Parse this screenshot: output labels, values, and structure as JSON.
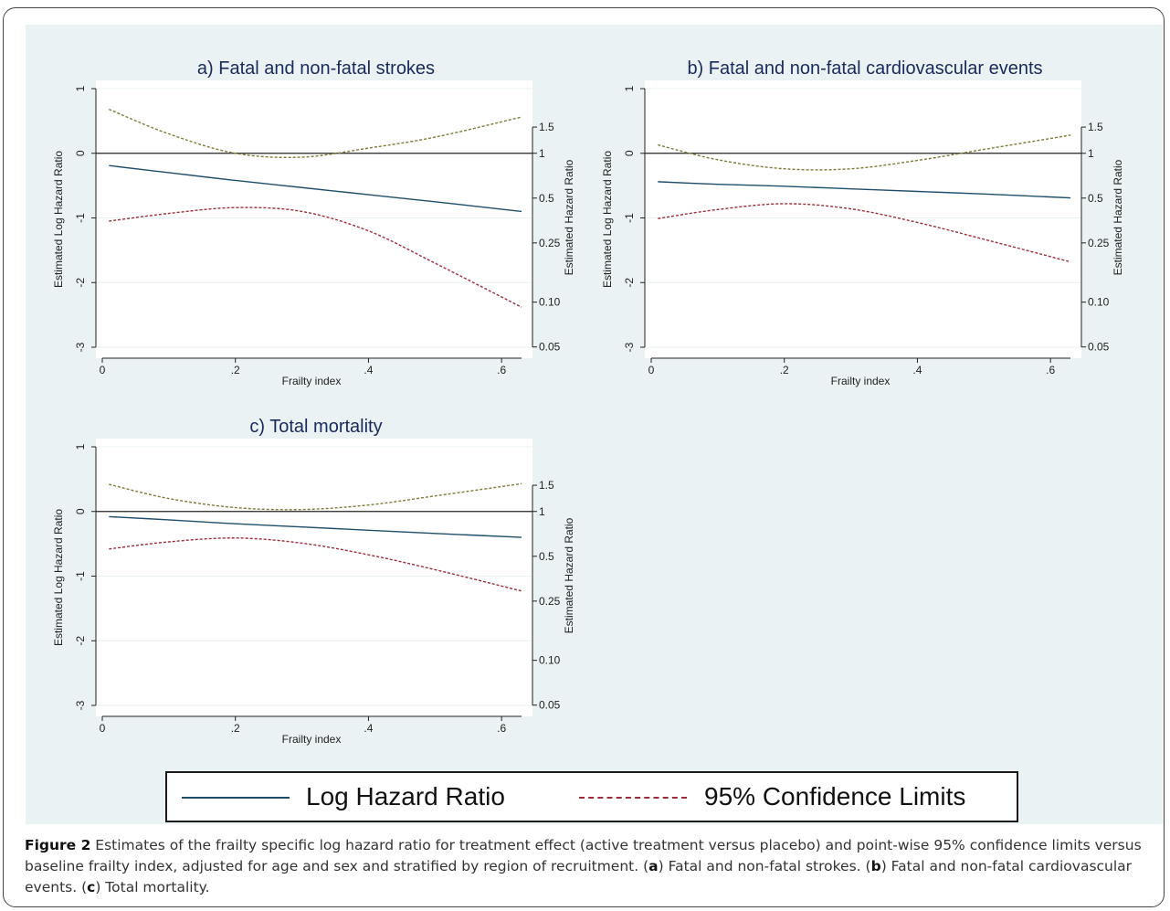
{
  "legend": {
    "log_hr_label": "Log Hazard Ratio",
    "ci_label": "95% Confidence Limits"
  },
  "colors": {
    "log_hr": "#1f4e6b",
    "lower_ci": "#9e2b3a",
    "upper_ci": "#7d7a3a",
    "reference_line": "#222222",
    "plot_background": "#eaf2f3"
  },
  "caption": {
    "figure_label": "Figure 2",
    "text_1": " Estimates of the frailty specific log hazard ratio for treatment effect (active treatment versus placebo) and point-wise 95% confidence limits versus baseline frailty index, adjusted for age and sex and stratified by region of recruitment. (",
    "a": "a",
    "text_2": ") Fatal and non-fatal strokes. (",
    "b": "b",
    "text_3": ") Fatal and non-fatal cardiovascular events. (",
    "c": "c",
    "text_4": ") Total mortality."
  },
  "chart_data": [
    {
      "type": "line",
      "title": "a) Fatal and non-fatal strokes",
      "xlabel": "Frailty index",
      "ylabel_left": "Estimated Log Hazard Ratio",
      "ylabel_right": "Estimated Hazard Ratio",
      "x_ticks": [
        "0",
        ".2",
        ".4",
        ".6"
      ],
      "x_tick_values": [
        0,
        0.2,
        0.4,
        0.6
      ],
      "y_ticks_left": [
        "-3",
        "-2",
        "-1",
        "0",
        "1"
      ],
      "y_ticks_right": [
        "0.05",
        "0.10",
        "0.25",
        "0.5",
        "1",
        "1.5"
      ],
      "y_tick_values_right": [
        0.05,
        0.1,
        0.25,
        0.5,
        1,
        1.5
      ],
      "xlim": [
        0,
        0.63
      ],
      "ylim": [
        -3,
        1
      ],
      "reference_y": 0,
      "x": [
        0.01,
        0.1,
        0.2,
        0.3,
        0.4,
        0.5,
        0.63
      ],
      "series": [
        {
          "name": "Log Hazard Ratio",
          "role": "log_hr",
          "values": [
            -0.19,
            -0.3,
            -0.42,
            -0.53,
            -0.64,
            -0.75,
            -0.9
          ]
        },
        {
          "name": "95% Confidence Limits",
          "role": "lower_ci",
          "values": [
            -1.05,
            -0.93,
            -0.84,
            -0.9,
            -1.2,
            -1.7,
            -2.38
          ]
        },
        {
          "name": "95% Confidence Limits",
          "role": "upper_ci",
          "values": [
            0.68,
            0.3,
            0.0,
            -0.06,
            0.08,
            0.25,
            0.56
          ]
        }
      ]
    },
    {
      "type": "line",
      "title": "b) Fatal and non-fatal cardiovascular events",
      "xlabel": "Frailty index",
      "ylabel_left": "Estimated Log Hazard Ratio",
      "ylabel_right": "Estimated Hazard Ratio",
      "x_ticks": [
        "0",
        ".2",
        ".4",
        ".6"
      ],
      "x_tick_values": [
        0,
        0.2,
        0.4,
        0.6
      ],
      "y_ticks_left": [
        "-3",
        "-2",
        "-1",
        "0",
        "1"
      ],
      "y_ticks_right": [
        "0.05",
        "0.10",
        "0.25",
        "0.5",
        "1",
        "1.5"
      ],
      "y_tick_values_right": [
        0.05,
        0.1,
        0.25,
        0.5,
        1,
        1.5
      ],
      "xlim": [
        0,
        0.63
      ],
      "ylim": [
        -3,
        1
      ],
      "reference_y": 0,
      "x": [
        0.01,
        0.1,
        0.2,
        0.3,
        0.4,
        0.5,
        0.63
      ],
      "series": [
        {
          "name": "Log Hazard Ratio",
          "role": "log_hr",
          "values": [
            -0.44,
            -0.48,
            -0.51,
            -0.55,
            -0.59,
            -0.63,
            -0.69
          ]
        },
        {
          "name": "95% Confidence Limits",
          "role": "lower_ci",
          "values": [
            -1.01,
            -0.87,
            -0.78,
            -0.86,
            -1.07,
            -1.33,
            -1.68
          ]
        },
        {
          "name": "95% Confidence Limits",
          "role": "upper_ci",
          "values": [
            0.13,
            -0.1,
            -0.24,
            -0.24,
            -0.11,
            0.06,
            0.28
          ]
        }
      ]
    },
    {
      "type": "line",
      "title": "c) Total mortality",
      "xlabel": "Frailty index",
      "ylabel_left": "Estimated Log Hazard Ratio",
      "ylabel_right": "Estimated Hazard Ratio",
      "x_ticks": [
        "0",
        ".2",
        ".4",
        ".6"
      ],
      "x_tick_values": [
        0,
        0.2,
        0.4,
        0.6
      ],
      "y_ticks_left": [
        "-3",
        "-2",
        "-1",
        "0",
        "1"
      ],
      "y_ticks_right": [
        "0.05",
        "0.10",
        "0.25",
        "0.5",
        "1",
        "1.5"
      ],
      "y_tick_values_right": [
        0.05,
        0.1,
        0.25,
        0.5,
        1,
        1.5
      ],
      "xlim": [
        0,
        0.63
      ],
      "ylim": [
        -3,
        1
      ],
      "reference_y": 0,
      "x": [
        0.01,
        0.1,
        0.2,
        0.3,
        0.4,
        0.5,
        0.63
      ],
      "series": [
        {
          "name": "Log Hazard Ratio",
          "role": "log_hr",
          "values": [
            -0.08,
            -0.13,
            -0.19,
            -0.24,
            -0.29,
            -0.34,
            -0.4
          ]
        },
        {
          "name": "95% Confidence Limits",
          "role": "lower_ci",
          "values": [
            -0.58,
            -0.47,
            -0.41,
            -0.49,
            -0.67,
            -0.9,
            -1.23
          ]
        },
        {
          "name": "95% Confidence Limits",
          "role": "upper_ci",
          "values": [
            0.42,
            0.2,
            0.06,
            0.03,
            0.1,
            0.24,
            0.43
          ]
        }
      ]
    }
  ]
}
